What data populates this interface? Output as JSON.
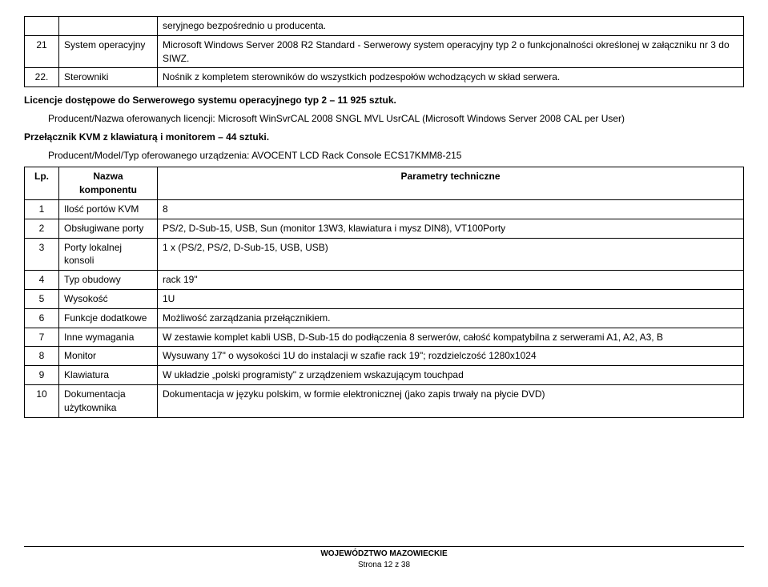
{
  "topTable": {
    "rows": [
      {
        "num": "",
        "name": "",
        "desc": "seryjnego bezpośrednio u producenta."
      },
      {
        "num": "21",
        "name": "System operacyjny",
        "desc": "Microsoft Windows Server 2008 R2 Standard - Serwerowy system operacyjny typ 2 o funkcjonalności określonej w załączniku nr 3 do SIWZ."
      },
      {
        "num": "22.",
        "name": "Sterowniki",
        "desc": "Nośnik z kompletem sterowników do wszystkich podzespołów wchodzących w skład serwera."
      }
    ]
  },
  "licHeading": "Licencje dostępowe do Serwerowego systemu operacyjnego typ 2 – 11 925 sztuk.",
  "licDesc": "Producent/Nazwa oferowanych licencji: Microsoft WinSvrCAL 2008 SNGL MVL UsrCAL (Microsoft Windows Server 2008 CAL per User)",
  "kvmHeading": "Przełącznik KVM z klawiaturą i monitorem – 44 sztuki.",
  "kvmDesc": "Producent/Model/Typ oferowanego urządzenia: AVOCENT LCD Rack Console ECS17KMM8-215",
  "tableHeaders": {
    "lp": "Lp.",
    "name": "Nazwa komponentu",
    "params": "Parametry techniczne"
  },
  "mainTable": {
    "rows": [
      {
        "num": "1",
        "name": "Ilość portów KVM",
        "desc": "8"
      },
      {
        "num": "2",
        "name": "Obsługiwane porty",
        "desc": "PS/2, D-Sub-15, USB, Sun (monitor 13W3, klawiatura i mysz DIN8), VT100Porty"
      },
      {
        "num": "3",
        "name": "Porty lokalnej konsoli",
        "desc": "1 x (PS/2, PS/2, D-Sub-15, USB, USB)"
      },
      {
        "num": "4",
        "name": "Typ obudowy",
        "desc": "rack 19\""
      },
      {
        "num": "5",
        "name": "Wysokość",
        "desc": "1U"
      },
      {
        "num": "6",
        "name": "Funkcje dodatkowe",
        "desc": "Możliwość zarządzania przełącznikiem."
      },
      {
        "num": "7",
        "name": "Inne wymagania",
        "desc": "W zestawie komplet kabli USB, D-Sub-15 do podłączenia 8 serwerów, całość kompatybilna z serwerami A1, A2, A3, B"
      },
      {
        "num": "8",
        "name": "Monitor",
        "desc": "Wysuwany 17\" o wysokości 1U do instalacji w szafie rack 19\"; rozdzielczość 1280x1024"
      },
      {
        "num": "9",
        "name": "Klawiatura",
        "desc": "W układzie „polski programisty\" z urządzeniem wskazującym touchpad"
      },
      {
        "num": "10",
        "name": "Dokumentacja użytkownika",
        "desc": "Dokumentacja w języku polskim, w formie elektronicznej (jako zapis trwały na płycie DVD)"
      }
    ]
  },
  "footer": {
    "line1": "WOJEWÓDZTWO MAZOWIECKIE",
    "line2": "Strona 12 z 38"
  }
}
